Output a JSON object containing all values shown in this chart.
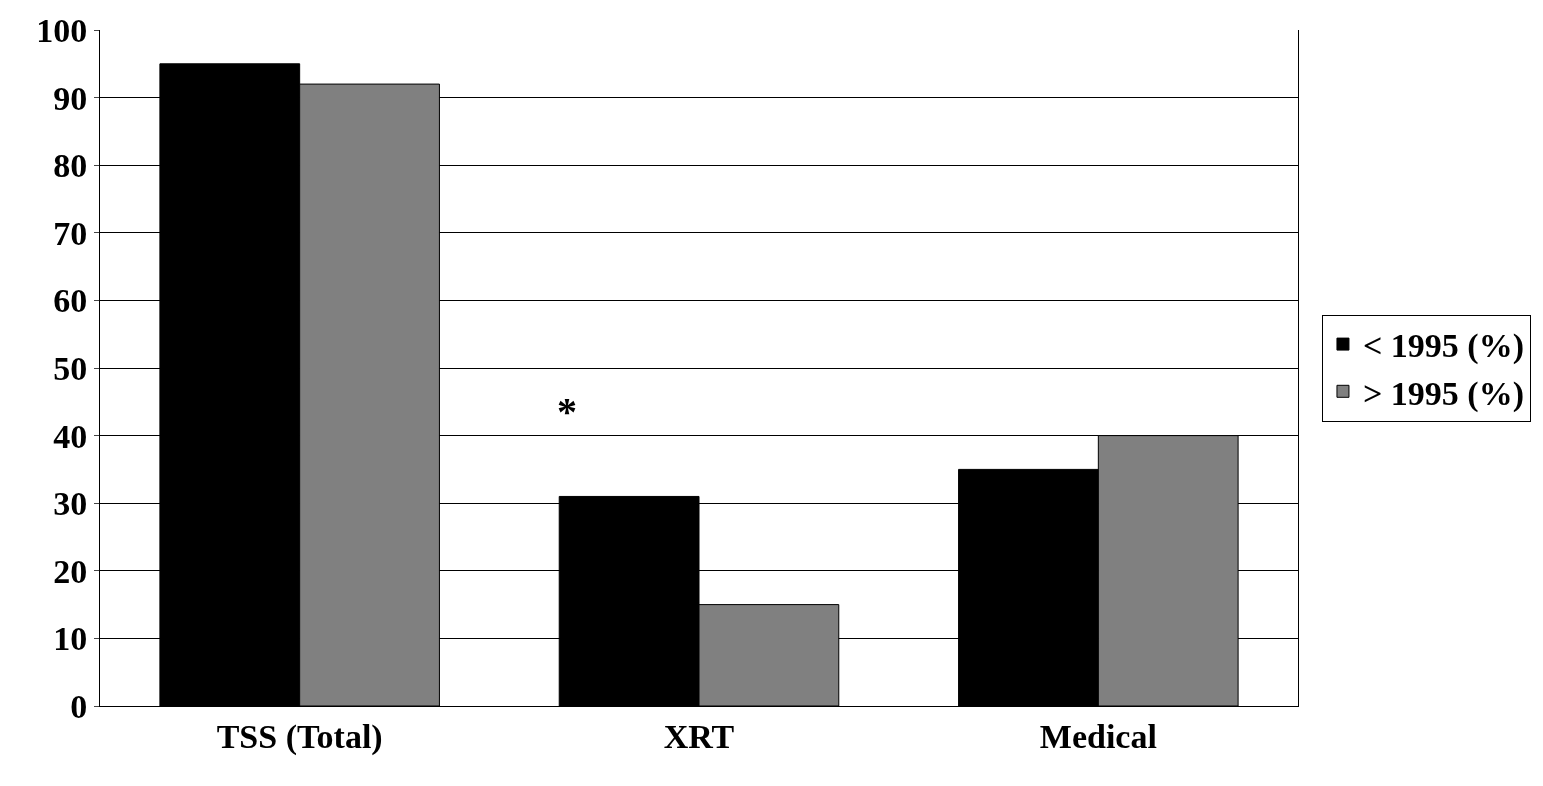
{
  "chart_data": {
    "type": "bar",
    "categories": [
      "TSS (Total)",
      "XRT",
      "Medical"
    ],
    "series": [
      {
        "name": "< 1995 (%)",
        "color": "#000000",
        "values": [
          95,
          31,
          35
        ]
      },
      {
        "name": "> 1995 (%)",
        "color": "#808080",
        "values": [
          92,
          15,
          40
        ]
      }
    ],
    "ylim": [
      0,
      100
    ],
    "yticks": [
      0,
      10,
      20,
      30,
      40,
      50,
      60,
      70,
      80,
      90,
      100
    ],
    "grid": "y",
    "legend": "right",
    "annotations": [
      "*"
    ]
  }
}
